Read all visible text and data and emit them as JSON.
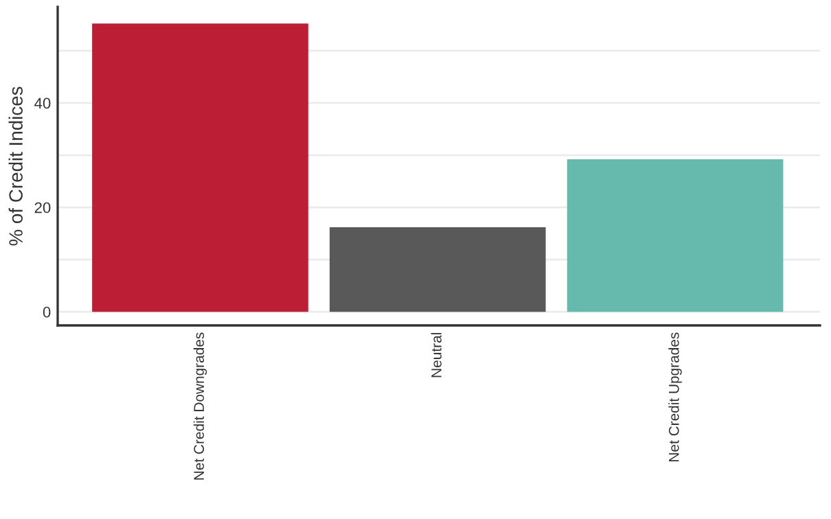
{
  "chart_data": {
    "type": "bar",
    "ylabel": "% of Credit Indices",
    "categories": [
      "Net Credit Downgrades",
      "Neutral",
      "Net Credit Upgrades"
    ],
    "values": [
      55.2,
      16.2,
      29.2
    ],
    "colors": [
      "#bc1f35",
      "#595959",
      "#66b9ad"
    ],
    "ylim": [
      -2.6,
      58.4
    ],
    "yticks": [
      0,
      {
        "value": 10,
        "label": null
      },
      20,
      {
        "value": 30,
        "label": null
      },
      40,
      {
        "value": 50,
        "label": null
      }
    ],
    "grid": "y"
  }
}
